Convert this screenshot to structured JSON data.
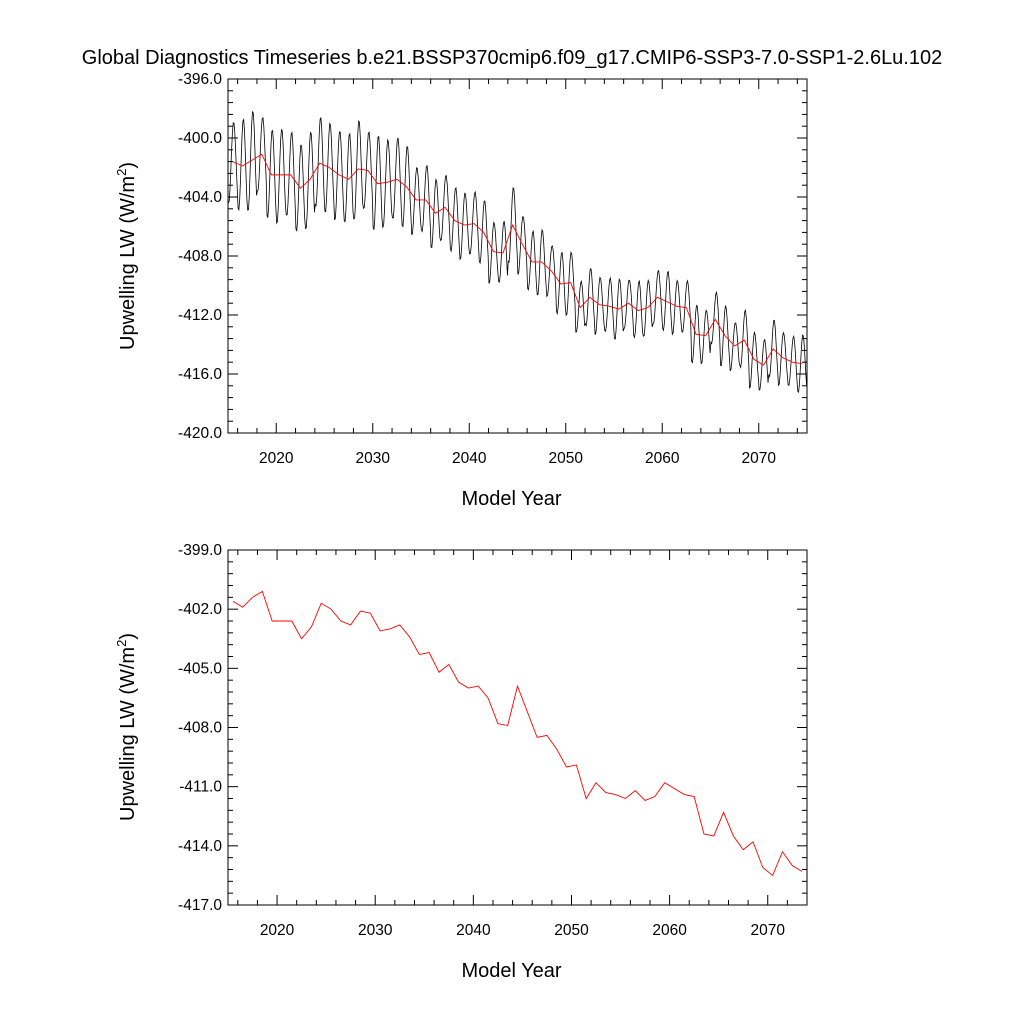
{
  "title": "Global Diagnostics Timeseries b.e21.BSSP370cmip6.f09_g17.CMIP6-SSP3-7.0-SSP1-2.6Lu.102",
  "colors": {
    "monthly": "#000000",
    "annual": "#ff0000"
  },
  "chart_data": [
    {
      "type": "line",
      "xlabel": "Model Year",
      "ylabel": "Upwelling LW (W/m",
      "ylabel_superscript": "2",
      "ylabel_suffix": ")",
      "xlim": [
        2015,
        2075
      ],
      "ylim": [
        -420.0,
        -396.0
      ],
      "xticks": [
        2020,
        2030,
        2040,
        2050,
        2060,
        2070
      ],
      "xtick_labels": [
        "2020",
        "2030",
        "2040",
        "2050",
        "2060",
        "2070"
      ],
      "yticks": [
        -420.0,
        -416.0,
        -412.0,
        -408.0,
        -404.0,
        -400.0,
        -396.0
      ],
      "ytick_labels": [
        "-420.0",
        "-416.0",
        "-412.0",
        "-408.0",
        "-404.0",
        "-400.0",
        "-396.0"
      ],
      "series": [
        {
          "kind": "monthly",
          "annual_mean": [
            -401.6,
            -401.9,
            -401.5,
            -401.1,
            -402.5,
            -402.5,
            -402.5,
            -403.4,
            -402.8,
            -401.7,
            -402.0,
            -402.5,
            -402.8,
            -402.1,
            -402.2,
            -403.1,
            -403.0,
            -402.8,
            -403.3,
            -404.2,
            -404.2,
            -405.1,
            -404.7,
            -405.6,
            -405.9,
            -405.8,
            -406.4,
            -407.7,
            -407.8,
            -405.9,
            -407.2,
            -408.4,
            -408.4,
            -409.0,
            -409.9,
            -409.8,
            -411.5,
            -410.8,
            -411.3,
            -411.4,
            -411.6,
            -411.2,
            -411.7,
            -411.5,
            -410.8,
            -411.1,
            -411.4,
            -411.5,
            -413.3,
            -413.4,
            -412.3,
            -413.4,
            -414.1,
            -413.7,
            -415.0,
            -415.4,
            -414.3,
            -414.9,
            -415.2,
            -415.3
          ],
          "seasonal_amplitude": [
            2.9,
            3.1,
            3.3,
            2.7,
            2.9,
            3.2,
            3.0,
            2.8,
            3.4,
            3.1,
            2.9,
            3.2,
            3.0,
            3.3,
            2.8,
            3.1,
            3.0,
            2.9,
            2.6,
            2.4,
            2.3,
            2.2,
            2.4,
            2.1,
            2.2,
            2.3,
            2.0,
            2.1,
            2.2,
            2.4,
            2.1,
            2.0,
            2.1,
            1.9,
            2.0,
            2.1,
            1.9,
            1.8,
            2.0,
            1.9,
            1.9,
            1.8,
            1.9,
            1.8,
            2.0,
            1.9,
            1.8,
            1.9,
            1.8,
            1.9,
            1.8,
            1.9,
            1.8,
            1.9,
            1.8,
            1.9,
            1.8,
            1.8,
            1.8,
            1.8
          ]
        },
        {
          "kind": "annual",
          "x": [
            2015.5,
            2016.5,
            2017.5,
            2018.5,
            2019.5,
            2020.5,
            2021.5,
            2022.5,
            2023.5,
            2024.5,
            2025.5,
            2026.5,
            2027.5,
            2028.5,
            2029.5,
            2030.5,
            2031.5,
            2032.5,
            2033.5,
            2034.5,
            2035.5,
            2036.5,
            2037.5,
            2038.5,
            2039.5,
            2040.5,
            2041.5,
            2042.5,
            2043.5,
            2044.5,
            2045.5,
            2046.5,
            2047.5,
            2048.5,
            2049.5,
            2050.5,
            2051.5,
            2052.5,
            2053.5,
            2054.5,
            2055.5,
            2056.5,
            2057.5,
            2058.5,
            2059.5,
            2060.5,
            2061.5,
            2062.5,
            2063.5,
            2064.5,
            2065.5,
            2066.5,
            2067.5,
            2068.5,
            2069.5,
            2070.5,
            2071.5,
            2072.5,
            2073.5,
            2074.5
          ],
          "y": [
            -401.6,
            -401.9,
            -401.5,
            -401.1,
            -402.5,
            -402.5,
            -402.5,
            -403.4,
            -402.8,
            -401.7,
            -402.0,
            -402.5,
            -402.8,
            -402.1,
            -402.2,
            -403.1,
            -403.0,
            -402.8,
            -403.3,
            -404.2,
            -404.2,
            -405.1,
            -404.7,
            -405.6,
            -405.9,
            -405.8,
            -406.4,
            -407.7,
            -407.8,
            -405.9,
            -407.2,
            -408.4,
            -408.4,
            -409.0,
            -409.9,
            -409.8,
            -411.5,
            -410.8,
            -411.3,
            -411.4,
            -411.6,
            -411.2,
            -411.7,
            -411.5,
            -410.8,
            -411.1,
            -411.4,
            -411.5,
            -413.3,
            -413.4,
            -412.3,
            -413.4,
            -414.1,
            -413.7,
            -415.0,
            -415.4,
            -414.3,
            -414.9,
            -415.2,
            -415.3
          ]
        }
      ]
    },
    {
      "type": "line",
      "xlabel": "Model Year",
      "ylabel": "Upwelling LW (W/m",
      "ylabel_superscript": "2",
      "ylabel_suffix": ")",
      "xlim": [
        2015,
        2074
      ],
      "ylim": [
        -417.0,
        -399.0
      ],
      "xticks": [
        2020,
        2030,
        2040,
        2050,
        2060,
        2070
      ],
      "xtick_labels": [
        "2020",
        "2030",
        "2040",
        "2050",
        "2060",
        "2070"
      ],
      "yticks": [
        -417.0,
        -414.0,
        -411.0,
        -408.0,
        -405.0,
        -402.0,
        -399.0
      ],
      "ytick_labels": [
        "-417.0",
        "-414.0",
        "-411.0",
        "-408.0",
        "-405.0",
        "-402.0",
        "-399.0"
      ],
      "series": [
        {
          "kind": "annual",
          "x": [
            2015.5,
            2016.5,
            2017.5,
            2018.5,
            2019.5,
            2020.5,
            2021.5,
            2022.5,
            2023.5,
            2024.5,
            2025.5,
            2026.5,
            2027.5,
            2028.5,
            2029.5,
            2030.5,
            2031.5,
            2032.5,
            2033.5,
            2034.5,
            2035.5,
            2036.5,
            2037.5,
            2038.5,
            2039.5,
            2040.5,
            2041.5,
            2042.5,
            2043.5,
            2044.5,
            2045.5,
            2046.5,
            2047.5,
            2048.5,
            2049.5,
            2050.5,
            2051.5,
            2052.5,
            2053.5,
            2054.5,
            2055.5,
            2056.5,
            2057.5,
            2058.5,
            2059.5,
            2060.5,
            2061.5,
            2062.5,
            2063.5,
            2064.5,
            2065.5,
            2066.5,
            2067.5,
            2068.5,
            2069.5,
            2070.5,
            2071.5,
            2072.5,
            2073.5
          ],
          "y": [
            -401.6,
            -401.9,
            -401.4,
            -401.1,
            -402.6,
            -402.6,
            -402.6,
            -403.5,
            -402.9,
            -401.7,
            -402.0,
            -402.6,
            -402.8,
            -402.1,
            -402.2,
            -403.1,
            -403.0,
            -402.8,
            -403.4,
            -404.3,
            -404.2,
            -405.2,
            -404.8,
            -405.7,
            -406.0,
            -405.9,
            -406.5,
            -407.8,
            -407.9,
            -405.9,
            -407.2,
            -408.5,
            -408.4,
            -409.1,
            -410.0,
            -409.9,
            -411.6,
            -410.8,
            -411.3,
            -411.4,
            -411.6,
            -411.2,
            -411.7,
            -411.5,
            -410.8,
            -411.1,
            -411.4,
            -411.5,
            -413.4,
            -413.5,
            -412.3,
            -413.5,
            -414.2,
            -413.8,
            -415.1,
            -415.5,
            -414.3,
            -415.0,
            -415.3
          ]
        }
      ]
    }
  ]
}
